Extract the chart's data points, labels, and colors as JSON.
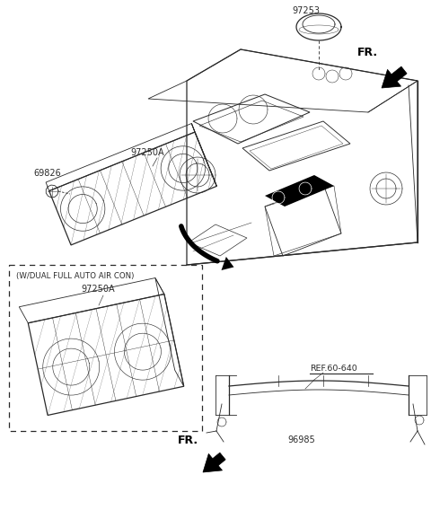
{
  "bg_color": "#ffffff",
  "line_color": "#2a2a2a",
  "label_69826": "69826",
  "label_97250A": "97250A",
  "label_97253": "97253",
  "label_96985": "96985",
  "label_ref": "REF.60-640",
  "label_fr": "FR.",
  "label_dual": "(W/DUAL FULL AUTO AIR CON)",
  "fig_w": 4.8,
  "fig_h": 5.68,
  "dpi": 100
}
